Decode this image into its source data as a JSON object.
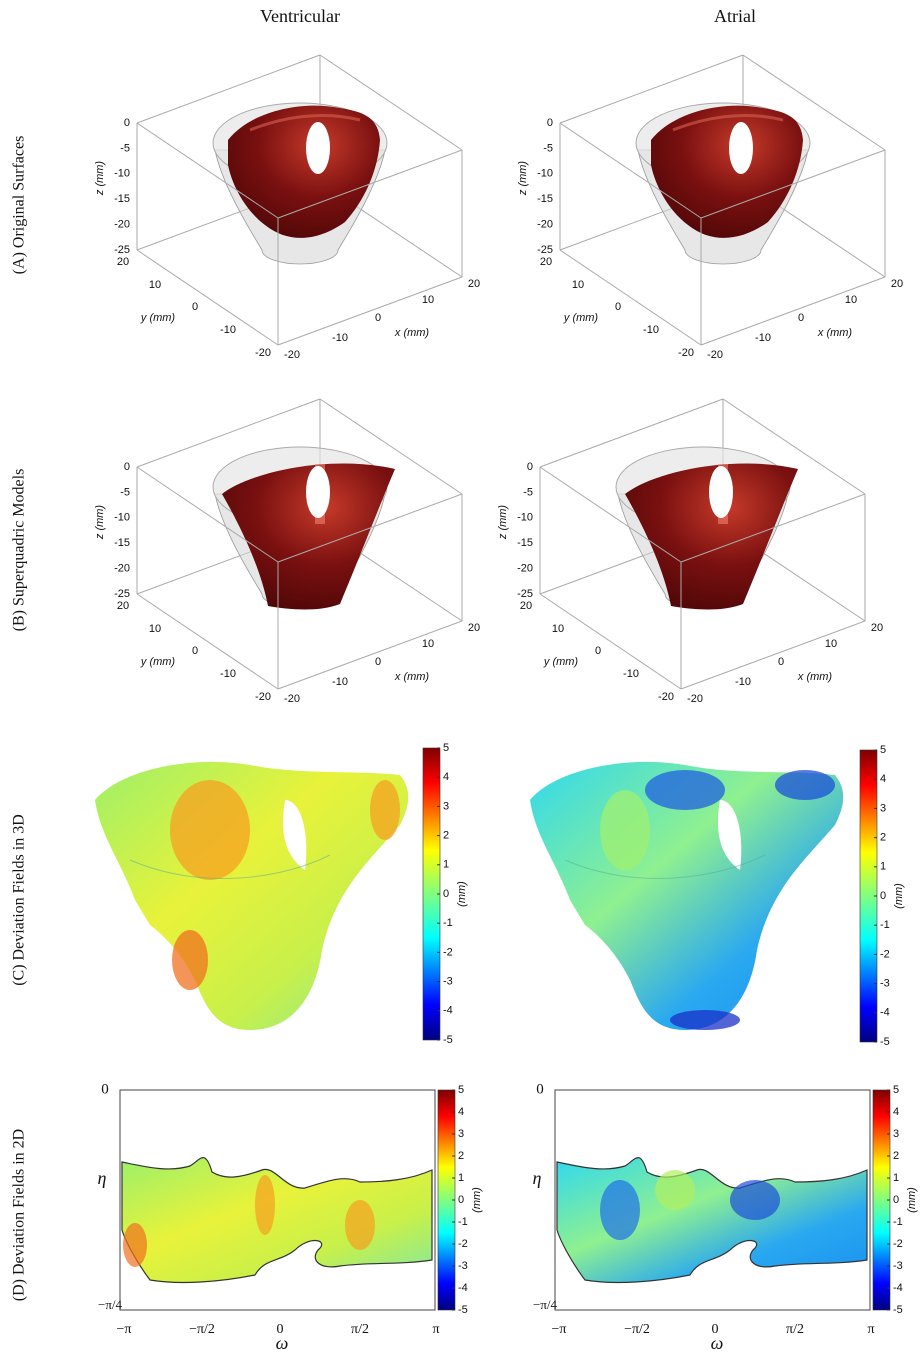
{
  "columns": [
    "Ventricular",
    "Atrial"
  ],
  "rows": [
    "(A) Original Surfaces",
    "(B) Superquadric Models",
    "(C) Deviation Fields in 3D",
    "(D) Deviation Fields in 2D"
  ],
  "axes3d": {
    "z_label": "z (mm)",
    "y_label": "y (mm)",
    "x_label": "x (mm)",
    "z_ticks": [
      "0",
      "-5",
      "-10",
      "-15",
      "-20",
      "-25"
    ],
    "y_ticks": [
      "20",
      "10",
      "0",
      "-10",
      "-20"
    ],
    "x_ticks": [
      "-20",
      "-10",
      "0",
      "10",
      "20"
    ]
  },
  "colorbar": {
    "ticks": [
      "5",
      "4",
      "3",
      "2",
      "1",
      "0",
      "-1",
      "-2",
      "-3",
      "-4",
      "-5"
    ],
    "unit": "(mm)"
  },
  "axes2d": {
    "y_label": "η",
    "x_label": "ω",
    "y_ticks": [
      "0",
      "−π/4"
    ],
    "x_ticks": [
      "−π",
      "−π/2",
      "0",
      "π/2",
      "π"
    ]
  }
}
